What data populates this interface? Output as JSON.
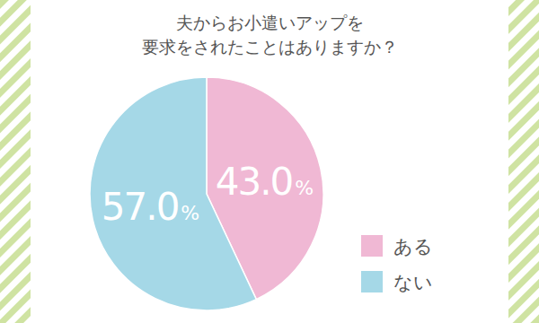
{
  "chart_data": {
    "type": "pie",
    "title": "夫からお小遣いアップを\n要求をされたことはありますか？",
    "categories": [
      "ある",
      "ない"
    ],
    "values": [
      43.0,
      57.0
    ],
    "value_labels": [
      "43.0%",
      "57.0%"
    ],
    "colors": [
      "#f0b8d4",
      "#a5d8e7"
    ],
    "data_labels": true,
    "legend": "bottom-right"
  }
}
